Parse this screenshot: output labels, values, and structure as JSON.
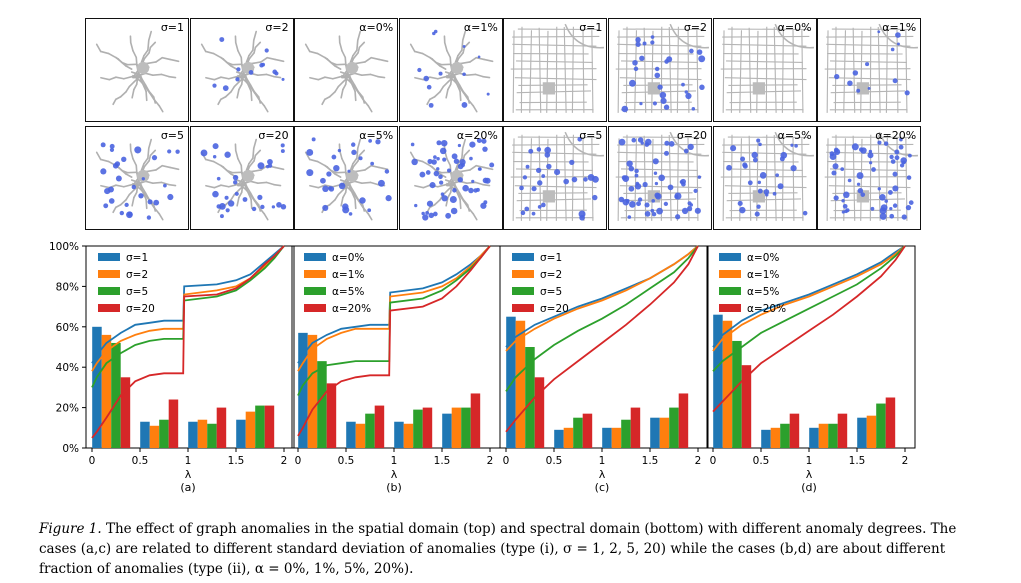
{
  "thumbnails": [
    {
      "label": "σ=1",
      "map": "graph1",
      "level": 0
    },
    {
      "label": "σ=2",
      "map": "graph1",
      "level": 1
    },
    {
      "label": "α=0%",
      "map": "graph1",
      "level": 0
    },
    {
      "label": "α=1%",
      "map": "graph1",
      "level": 1
    },
    {
      "label": "σ=1",
      "map": "graph2",
      "level": 0
    },
    {
      "label": "σ=2",
      "map": "graph2",
      "level": 2
    },
    {
      "label": "α=0%",
      "map": "graph2",
      "level": 0
    },
    {
      "label": "α=1%",
      "map": "graph2",
      "level": 1
    },
    {
      "label": "σ=5",
      "map": "graph1",
      "level": 2
    },
    {
      "label": "σ=20",
      "map": "graph1",
      "level": 2
    },
    {
      "label": "α=5%",
      "map": "graph1",
      "level": 2
    },
    {
      "label": "α=20%",
      "map": "graph1",
      "level": 3
    },
    {
      "label": "σ=5",
      "map": "graph2",
      "level": 2
    },
    {
      "label": "σ=20",
      "map": "graph2",
      "level": 3
    },
    {
      "label": "α=5%",
      "map": "graph2",
      "level": 2
    },
    {
      "label": "α=20%",
      "map": "graph2",
      "level": 3
    }
  ],
  "colors": [
    "#1f77b4",
    "#ff7f0e",
    "#2ca02c",
    "#d62728"
  ],
  "chart_data": [
    {
      "type": "bar+line",
      "panel": "(a)",
      "xlabel": "λ",
      "xticks": [
        "0",
        "0.5",
        "1",
        "1.5",
        "2"
      ],
      "yticks": [
        "0%",
        "20%",
        "40%",
        "60%",
        "80%",
        "100%"
      ],
      "ylim": [
        0,
        100
      ],
      "xlim": [
        0,
        2
      ],
      "legend": [
        "σ=1",
        "σ=2",
        "σ=5",
        "σ=20"
      ],
      "bars": [
        [
          60,
          56,
          52,
          35
        ],
        [
          13,
          11,
          14,
          24
        ],
        [
          13,
          14,
          12,
          20
        ],
        [
          14,
          18,
          21,
          21
        ]
      ],
      "lines": [
        [
          [
            0,
            42
          ],
          [
            0.05,
            46
          ],
          [
            0.15,
            52
          ],
          [
            0.3,
            57
          ],
          [
            0.45,
            61
          ],
          [
            0.6,
            62
          ],
          [
            0.75,
            63
          ],
          [
            0.95,
            63
          ],
          [
            0.96,
            80
          ],
          [
            1.3,
            81
          ],
          [
            1.5,
            83
          ],
          [
            1.65,
            86
          ],
          [
            1.8,
            92
          ],
          [
            1.9,
            96
          ],
          [
            2,
            100
          ]
        ],
        [
          [
            0,
            38
          ],
          [
            0.05,
            42
          ],
          [
            0.15,
            48
          ],
          [
            0.3,
            53
          ],
          [
            0.45,
            56
          ],
          [
            0.6,
            58
          ],
          [
            0.75,
            59
          ],
          [
            0.95,
            59
          ],
          [
            0.96,
            76
          ],
          [
            1.3,
            78
          ],
          [
            1.5,
            80
          ],
          [
            1.65,
            84
          ],
          [
            1.8,
            90
          ],
          [
            1.9,
            95
          ],
          [
            2,
            100
          ]
        ],
        [
          [
            0,
            30
          ],
          [
            0.05,
            35
          ],
          [
            0.15,
            42
          ],
          [
            0.3,
            47
          ],
          [
            0.45,
            51
          ],
          [
            0.6,
            53
          ],
          [
            0.75,
            54
          ],
          [
            0.95,
            54
          ],
          [
            0.96,
            73
          ],
          [
            1.3,
            75
          ],
          [
            1.5,
            78
          ],
          [
            1.65,
            83
          ],
          [
            1.8,
            89
          ],
          [
            1.9,
            94
          ],
          [
            2,
            100
          ]
        ],
        [
          [
            0,
            5
          ],
          [
            0.05,
            8
          ],
          [
            0.15,
            15
          ],
          [
            0.3,
            26
          ],
          [
            0.45,
            33
          ],
          [
            0.6,
            36
          ],
          [
            0.75,
            37
          ],
          [
            0.95,
            37
          ],
          [
            0.96,
            75
          ],
          [
            1.3,
            76
          ],
          [
            1.5,
            79
          ],
          [
            1.65,
            84
          ],
          [
            1.8,
            91
          ],
          [
            1.9,
            95
          ],
          [
            2,
            100
          ]
        ]
      ]
    },
    {
      "type": "bar+line",
      "panel": "(b)",
      "xlabel": "λ",
      "xticks": [
        "0",
        "0.5",
        "1",
        "1.5",
        "2"
      ],
      "yticks": [
        "0%",
        "20%",
        "40%",
        "60%",
        "80%",
        "100%"
      ],
      "ylim": [
        0,
        100
      ],
      "xlim": [
        0,
        2
      ],
      "legend": [
        "α=0%",
        "α=1%",
        "α=5%",
        "α=20%"
      ],
      "bars": [
        [
          57,
          56,
          43,
          32
        ],
        [
          13,
          12,
          17,
          21
        ],
        [
          13,
          12,
          19,
          20
        ],
        [
          17,
          20,
          20,
          27
        ]
      ],
      "lines": [
        [
          [
            0,
            42
          ],
          [
            0.05,
            46
          ],
          [
            0.15,
            52
          ],
          [
            0.3,
            56
          ],
          [
            0.45,
            59
          ],
          [
            0.6,
            60
          ],
          [
            0.75,
            61
          ],
          [
            0.95,
            61
          ],
          [
            0.96,
            77
          ],
          [
            1.3,
            79
          ],
          [
            1.5,
            82
          ],
          [
            1.65,
            86
          ],
          [
            1.8,
            91
          ],
          [
            1.9,
            95
          ],
          [
            2,
            100
          ]
        ],
        [
          [
            0,
            38
          ],
          [
            0.05,
            42
          ],
          [
            0.15,
            49
          ],
          [
            0.3,
            54
          ],
          [
            0.45,
            57
          ],
          [
            0.6,
            59
          ],
          [
            0.75,
            59
          ],
          [
            0.95,
            59
          ],
          [
            0.96,
            75
          ],
          [
            1.3,
            77
          ],
          [
            1.5,
            80
          ],
          [
            1.65,
            84
          ],
          [
            1.8,
            90
          ],
          [
            1.9,
            95
          ],
          [
            2,
            100
          ]
        ],
        [
          [
            0,
            26
          ],
          [
            0.05,
            31
          ],
          [
            0.15,
            37
          ],
          [
            0.3,
            41
          ],
          [
            0.45,
            42
          ],
          [
            0.6,
            43
          ],
          [
            0.75,
            43
          ],
          [
            0.95,
            43
          ],
          [
            0.96,
            72
          ],
          [
            1.3,
            74
          ],
          [
            1.5,
            78
          ],
          [
            1.65,
            83
          ],
          [
            1.8,
            89
          ],
          [
            1.9,
            94
          ],
          [
            2,
            100
          ]
        ],
        [
          [
            0,
            6
          ],
          [
            0.05,
            10
          ],
          [
            0.15,
            19
          ],
          [
            0.3,
            28
          ],
          [
            0.45,
            33
          ],
          [
            0.6,
            35
          ],
          [
            0.75,
            36
          ],
          [
            0.95,
            36
          ],
          [
            0.96,
            68
          ],
          [
            1.3,
            70
          ],
          [
            1.5,
            74
          ],
          [
            1.65,
            80
          ],
          [
            1.8,
            88
          ],
          [
            1.9,
            94
          ],
          [
            2,
            100
          ]
        ]
      ]
    },
    {
      "type": "bar+line",
      "panel": "(c)",
      "xlabel": "λ",
      "xticks": [
        "0",
        "0.5",
        "1",
        "1.5",
        "2"
      ],
      "yticks": [
        "0%",
        "20%",
        "40%",
        "60%",
        "80%",
        "100%"
      ],
      "ylim": [
        0,
        100
      ],
      "xlim": [
        0,
        2
      ],
      "legend": [
        "σ=1",
        "σ=2",
        "σ=5",
        "σ=20"
      ],
      "bars": [
        [
          65,
          63,
          50,
          35
        ],
        [
          9,
          10,
          15,
          17
        ],
        [
          10,
          10,
          14,
          20
        ],
        [
          15,
          15,
          20,
          27
        ]
      ],
      "lines": [
        [
          [
            0,
            50
          ],
          [
            0.1,
            55
          ],
          [
            0.3,
            61
          ],
          [
            0.5,
            65
          ],
          [
            0.75,
            70
          ],
          [
            1,
            74
          ],
          [
            1.25,
            79
          ],
          [
            1.5,
            84
          ],
          [
            1.75,
            91
          ],
          [
            1.9,
            96
          ],
          [
            2,
            100
          ]
        ],
        [
          [
            0,
            48
          ],
          [
            0.1,
            53
          ],
          [
            0.3,
            59
          ],
          [
            0.5,
            64
          ],
          [
            0.75,
            69
          ],
          [
            1,
            73
          ],
          [
            1.25,
            78
          ],
          [
            1.5,
            84
          ],
          [
            1.75,
            91
          ],
          [
            1.9,
            96
          ],
          [
            2,
            100
          ]
        ],
        [
          [
            0,
            28
          ],
          [
            0.1,
            35
          ],
          [
            0.3,
            44
          ],
          [
            0.5,
            51
          ],
          [
            0.75,
            58
          ],
          [
            1,
            64
          ],
          [
            1.25,
            71
          ],
          [
            1.5,
            79
          ],
          [
            1.75,
            87
          ],
          [
            1.9,
            94
          ],
          [
            2,
            100
          ]
        ],
        [
          [
            0,
            8
          ],
          [
            0.1,
            14
          ],
          [
            0.3,
            25
          ],
          [
            0.5,
            34
          ],
          [
            0.75,
            43
          ],
          [
            1,
            52
          ],
          [
            1.25,
            61
          ],
          [
            1.5,
            71
          ],
          [
            1.75,
            82
          ],
          [
            1.9,
            91
          ],
          [
            2,
            100
          ]
        ]
      ]
    },
    {
      "type": "bar+line",
      "panel": "(d)",
      "xlabel": "λ",
      "xticks": [
        "0",
        "0.5",
        "1",
        "1.5",
        "2"
      ],
      "yticks": [
        "0%",
        "20%",
        "40%",
        "60%",
        "80%",
        "100%"
      ],
      "ylim": [
        0,
        100
      ],
      "xlim": [
        0,
        2
      ],
      "legend": [
        "α=0%",
        "α=1%",
        "α=5%",
        "α=20%"
      ],
      "bars": [
        [
          66,
          63,
          53,
          41
        ],
        [
          9,
          10,
          12,
          17
        ],
        [
          10,
          12,
          12,
          17
        ],
        [
          15,
          16,
          22,
          25
        ]
      ],
      "lines": [
        [
          [
            0,
            50
          ],
          [
            0.1,
            56
          ],
          [
            0.3,
            63
          ],
          [
            0.5,
            68
          ],
          [
            0.75,
            72
          ],
          [
            1,
            76
          ],
          [
            1.25,
            81
          ],
          [
            1.5,
            86
          ],
          [
            1.75,
            92
          ],
          [
            1.9,
            97
          ],
          [
            2,
            100
          ]
        ],
        [
          [
            0,
            48
          ],
          [
            0.1,
            54
          ],
          [
            0.3,
            61
          ],
          [
            0.5,
            66
          ],
          [
            0.75,
            71
          ],
          [
            1,
            75
          ],
          [
            1.25,
            80
          ],
          [
            1.5,
            85
          ],
          [
            1.75,
            91
          ],
          [
            1.9,
            96
          ],
          [
            2,
            100
          ]
        ],
        [
          [
            0,
            38
          ],
          [
            0.1,
            43
          ],
          [
            0.3,
            50
          ],
          [
            0.5,
            57
          ],
          [
            0.75,
            63
          ],
          [
            1,
            69
          ],
          [
            1.25,
            75
          ],
          [
            1.5,
            81
          ],
          [
            1.75,
            89
          ],
          [
            1.9,
            95
          ],
          [
            2,
            100
          ]
        ],
        [
          [
            0,
            18
          ],
          [
            0.1,
            23
          ],
          [
            0.3,
            33
          ],
          [
            0.5,
            42
          ],
          [
            0.75,
            50
          ],
          [
            1,
            58
          ],
          [
            1.25,
            66
          ],
          [
            1.5,
            75
          ],
          [
            1.75,
            85
          ],
          [
            1.9,
            93
          ],
          [
            2,
            100
          ]
        ]
      ]
    }
  ],
  "caption": {
    "fig": "Figure 1.",
    "text": "The effect of graph anomalies in the spatial domain (top) and spectral domain (bottom) with different anomaly degrees. The cases (a,c) are related to different standard deviation of anomalies (type (i), σ = 1, 2, 5, 20) while the cases (b,d) are about different fraction of anomalies (type (ii), α = 0%, 1%, 5%, 20%)."
  }
}
